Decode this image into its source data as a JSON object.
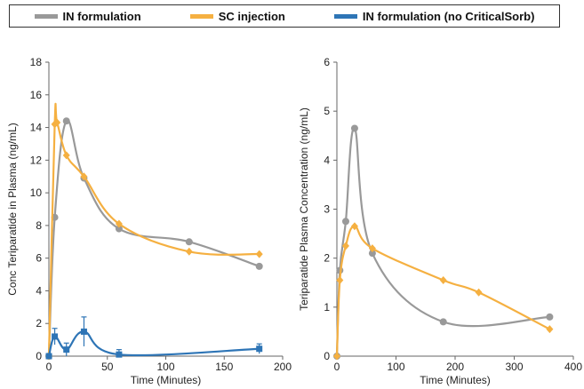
{
  "legend": {
    "items": [
      {
        "label": "IN formulation",
        "color": "#999999"
      },
      {
        "label": "SC injection",
        "color": "#F5B041"
      },
      {
        "label": "IN formulation (no CriticalSorb)",
        "color": "#2E75B6"
      }
    ]
  },
  "chart_data": [
    {
      "type": "line",
      "title": "",
      "xlabel": "Time (Minutes)",
      "ylabel": "Conc Teriparatide in Plasma (ng/mL)",
      "xlim": [
        0,
        200
      ],
      "ylim": [
        0,
        18
      ],
      "xticks": [
        0,
        50,
        100,
        150,
        200
      ],
      "yticks": [
        0,
        2,
        4,
        6,
        8,
        10,
        12,
        14,
        16,
        18
      ],
      "grid": false,
      "legend_position": "top",
      "series": [
        {
          "name": "IN formulation",
          "color": "#999999",
          "marker": "circle",
          "x": [
            0,
            5,
            15,
            30,
            60,
            120,
            180
          ],
          "y": [
            0,
            8.5,
            14.4,
            10.9,
            7.8,
            7.0,
            5.5
          ]
        },
        {
          "name": "SC injection",
          "color": "#F5B041",
          "marker": "diamond",
          "x": [
            0,
            5,
            7,
            15,
            30,
            60,
            120,
            180
          ],
          "y": [
            0,
            14.2,
            14.3,
            12.3,
            11.0,
            8.1,
            6.4,
            6.25
          ]
        },
        {
          "name": "IN formulation (no CriticalSorb)",
          "color": "#2E75B6",
          "marker": "square",
          "x": [
            0,
            5,
            15,
            30,
            60,
            180
          ],
          "y": [
            0,
            1.2,
            0.4,
            1.5,
            0.1,
            0.45
          ],
          "error": [
            0,
            0.5,
            0.4,
            0.9,
            0.3,
            0.3
          ]
        }
      ]
    },
    {
      "type": "line",
      "title": "",
      "xlabel": "Time (Minutes)",
      "ylabel": "Teriparatide Plasma Concentration (ng/mL)",
      "xlim": [
        0,
        400
      ],
      "ylim": [
        0,
        6
      ],
      "xticks": [
        0,
        100,
        200,
        300,
        400
      ],
      "yticks": [
        0,
        1,
        2,
        3,
        4,
        5,
        6
      ],
      "grid": false,
      "series": [
        {
          "name": "IN formulation",
          "color": "#999999",
          "marker": "circle",
          "x": [
            0,
            5,
            15,
            30,
            60,
            180,
            360
          ],
          "y": [
            0,
            1.75,
            2.75,
            4.65,
            2.1,
            0.7,
            0.8
          ]
        },
        {
          "name": "SC injection",
          "color": "#F5B041",
          "marker": "diamond",
          "x": [
            0,
            5,
            15,
            30,
            60,
            180,
            240,
            360
          ],
          "y": [
            0,
            1.55,
            2.25,
            2.65,
            2.2,
            1.55,
            1.3,
            0.55
          ]
        }
      ]
    }
  ]
}
